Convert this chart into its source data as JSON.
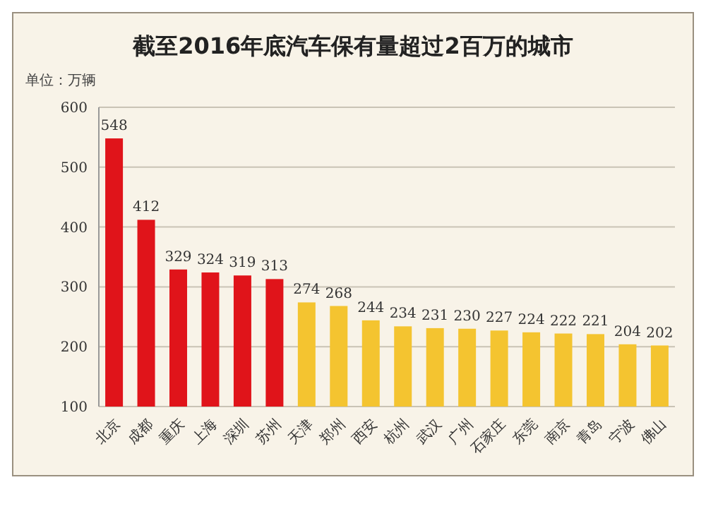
{
  "chart_data": {
    "type": "bar",
    "title": "截至2016年底汽车保有量超过2百万的城市",
    "ylabel": "单位：万辆",
    "categories": [
      "北京",
      "成都",
      "重庆",
      "上海",
      "深圳",
      "苏州",
      "天津",
      "郑州",
      "西安",
      "杭州",
      "武汉",
      "广州",
      "石家庄",
      "东莞",
      "南京",
      "青岛",
      "宁波",
      "佛山"
    ],
    "values": [
      548,
      412,
      329,
      324,
      319,
      313,
      274,
      268,
      244,
      234,
      231,
      230,
      227,
      224,
      222,
      221,
      204,
      202
    ],
    "colors": [
      "#e0141a",
      "#e0141a",
      "#e0141a",
      "#e0141a",
      "#e0141a",
      "#e0141a",
      "#f4c430",
      "#f4c430",
      "#f4c430",
      "#f4c430",
      "#f4c430",
      "#f4c430",
      "#f4c430",
      "#f4c430",
      "#f4c430",
      "#f4c430",
      "#f4c430",
      "#f4c430"
    ],
    "ylim": [
      100,
      600
    ],
    "yticks": [
      100,
      200,
      300,
      400,
      500,
      600
    ],
    "grid": "y",
    "data_labels": true
  }
}
